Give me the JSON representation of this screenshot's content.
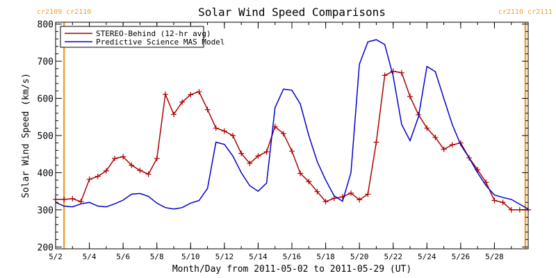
{
  "chart_data": {
    "type": "line",
    "title": "Solar Wind Speed Comparisons",
    "xlabel": "Month/Day from 2011-05-02 to 2011-05-29 (UT)",
    "ylabel": "Solar Wind Speed (km/s)",
    "xlim": [
      "2011-05-02T00:00",
      "2011-05-29T24:00"
    ],
    "ylim": [
      195,
      805
    ],
    "x_ticks": [
      "5/2",
      "5/4",
      "5/6",
      "5/8",
      "5/10",
      "5/12",
      "5/14",
      "5/16",
      "5/18",
      "5/20",
      "5/22",
      "5/24",
      "5/26",
      "5/28"
    ],
    "x_tick_dates": [
      "2011-05-02",
      "2011-05-04",
      "2011-05-06",
      "2011-05-08",
      "2011-05-10",
      "2011-05-12",
      "2011-05-14",
      "2011-05-16",
      "2011-05-18",
      "2011-05-20",
      "2011-05-22",
      "2011-05-24",
      "2011-05-26",
      "2011-05-28"
    ],
    "y_ticks": [
      200,
      300,
      400,
      500,
      600,
      700,
      800
    ],
    "legend_position": "top-left",
    "carrington_markers": [
      {
        "date": "2011-05-02T12:00",
        "left_label": "cr2109",
        "right_label": "cr2110",
        "color": "#f0a030"
      },
      {
        "date": "2011-05-29T20:00",
        "left_label": "cr2110",
        "right_label": "cr2111",
        "color": "#f0a030"
      }
    ],
    "series": [
      {
        "name": "STEREO-Behind (12-hr avg)",
        "color": "#aa0000",
        "marker": "+",
        "points": [
          [
            "2011-05-02T00:00",
            328
          ],
          [
            "2011-05-02T12:00",
            328
          ],
          [
            "2011-05-03T00:00",
            330
          ],
          [
            "2011-05-03T12:00",
            322
          ],
          [
            "2011-05-04T00:00",
            382
          ],
          [
            "2011-05-04T12:00",
            390
          ],
          [
            "2011-05-05T00:00",
            405
          ],
          [
            "2011-05-05T12:00",
            438
          ],
          [
            "2011-05-06T00:00",
            443
          ],
          [
            "2011-05-06T12:00",
            420
          ],
          [
            "2011-05-07T00:00",
            406
          ],
          [
            "2011-05-07T12:00",
            396
          ],
          [
            "2011-05-08T00:00",
            438
          ],
          [
            "2011-05-08T12:00",
            611
          ],
          [
            "2011-05-09T00:00",
            557
          ],
          [
            "2011-05-09T12:00",
            590
          ],
          [
            "2011-05-10T00:00",
            610
          ],
          [
            "2011-05-10T12:00",
            618
          ],
          [
            "2011-05-11T00:00",
            570
          ],
          [
            "2011-05-11T12:00",
            520
          ],
          [
            "2011-05-12T00:00",
            512
          ],
          [
            "2011-05-12T12:00",
            500
          ],
          [
            "2011-05-13T00:00",
            452
          ],
          [
            "2011-05-13T12:00",
            425
          ],
          [
            "2011-05-14T00:00",
            445
          ],
          [
            "2011-05-14T12:00",
            456
          ],
          [
            "2011-05-15T00:00",
            524
          ],
          [
            "2011-05-15T12:00",
            505
          ],
          [
            "2011-05-16T00:00",
            458
          ],
          [
            "2011-05-16T12:00",
            398
          ],
          [
            "2011-05-17T00:00",
            376
          ],
          [
            "2011-05-17T12:00",
            349
          ],
          [
            "2011-05-18T00:00",
            322
          ],
          [
            "2011-05-18T12:00",
            331
          ],
          [
            "2011-05-19T00:00",
            335
          ],
          [
            "2011-05-19T12:00",
            345
          ],
          [
            "2011-05-20T00:00",
            327
          ],
          [
            "2011-05-20T12:00",
            342
          ],
          [
            "2011-05-21T00:00",
            482
          ],
          [
            "2011-05-21T12:00",
            662
          ],
          [
            "2011-05-22T00:00",
            673
          ],
          [
            "2011-05-22T12:00",
            669
          ],
          [
            "2011-05-23T00:00",
            605
          ],
          [
            "2011-05-23T12:00",
            556
          ],
          [
            "2011-05-24T00:00",
            520
          ],
          [
            "2011-05-24T12:00",
            495
          ],
          [
            "2011-05-25T00:00",
            463
          ],
          [
            "2011-05-25T12:00",
            475
          ],
          [
            "2011-05-26T00:00",
            480
          ],
          [
            "2011-05-26T12:00",
            440
          ],
          [
            "2011-05-27T00:00",
            408
          ],
          [
            "2011-05-27T12:00",
            374
          ],
          [
            "2011-05-28T00:00",
            325
          ],
          [
            "2011-05-28T12:00",
            320
          ],
          [
            "2011-05-29T00:00",
            300
          ],
          [
            "2011-05-29T12:00",
            300
          ],
          [
            "2011-05-30T00:00",
            300
          ]
        ]
      },
      {
        "name": "Predictive Science MAS Model",
        "color": "#0000cc",
        "marker": "none",
        "points": [
          [
            "2011-05-02T00:00",
            320
          ],
          [
            "2011-05-02T12:00",
            310
          ],
          [
            "2011-05-03T00:00",
            308
          ],
          [
            "2011-05-03T12:00",
            316
          ],
          [
            "2011-05-04T00:00",
            320
          ],
          [
            "2011-05-04T12:00",
            310
          ],
          [
            "2011-05-05T00:00",
            308
          ],
          [
            "2011-05-05T12:00",
            316
          ],
          [
            "2011-05-06T00:00",
            326
          ],
          [
            "2011-05-06T12:00",
            342
          ],
          [
            "2011-05-07T00:00",
            344
          ],
          [
            "2011-05-07T12:00",
            336
          ],
          [
            "2011-05-08T00:00",
            318
          ],
          [
            "2011-05-08T12:00",
            306
          ],
          [
            "2011-05-09T00:00",
            302
          ],
          [
            "2011-05-09T12:00",
            306
          ],
          [
            "2011-05-10T00:00",
            318
          ],
          [
            "2011-05-10T12:00",
            325
          ],
          [
            "2011-05-11T00:00",
            358
          ],
          [
            "2011-05-11T12:00",
            482
          ],
          [
            "2011-05-12T00:00",
            476
          ],
          [
            "2011-05-12T12:00",
            445
          ],
          [
            "2011-05-13T00:00",
            400
          ],
          [
            "2011-05-13T12:00",
            365
          ],
          [
            "2011-05-14T00:00",
            350
          ],
          [
            "2011-05-14T12:00",
            372
          ],
          [
            "2011-05-15T00:00",
            575
          ],
          [
            "2011-05-15T12:00",
            625
          ],
          [
            "2011-05-16T00:00",
            622
          ],
          [
            "2011-05-16T12:00",
            585
          ],
          [
            "2011-05-17T00:00",
            500
          ],
          [
            "2011-05-17T12:00",
            430
          ],
          [
            "2011-05-18T00:00",
            380
          ],
          [
            "2011-05-18T12:00",
            338
          ],
          [
            "2011-05-19T00:00",
            323
          ],
          [
            "2011-05-19T12:00",
            400
          ],
          [
            "2011-05-20T00:00",
            692
          ],
          [
            "2011-05-20T12:00",
            752
          ],
          [
            "2011-05-21T00:00",
            758
          ],
          [
            "2011-05-21T12:00",
            745
          ],
          [
            "2011-05-22T00:00",
            660
          ],
          [
            "2011-05-22T12:00",
            530
          ],
          [
            "2011-05-23T00:00",
            486
          ],
          [
            "2011-05-23T12:00",
            550
          ],
          [
            "2011-05-24T00:00",
            686
          ],
          [
            "2011-05-24T12:00",
            672
          ],
          [
            "2011-05-25T00:00",
            600
          ],
          [
            "2011-05-25T12:00",
            530
          ],
          [
            "2011-05-26T00:00",
            475
          ],
          [
            "2011-05-26T12:00",
            440
          ],
          [
            "2011-05-27T00:00",
            400
          ],
          [
            "2011-05-27T12:00",
            365
          ],
          [
            "2011-05-28T00:00",
            340
          ],
          [
            "2011-05-28T12:00",
            333
          ],
          [
            "2011-05-29T00:00",
            328
          ],
          [
            "2011-05-29T12:00",
            315
          ],
          [
            "2011-05-30T00:00",
            302
          ]
        ]
      }
    ]
  }
}
